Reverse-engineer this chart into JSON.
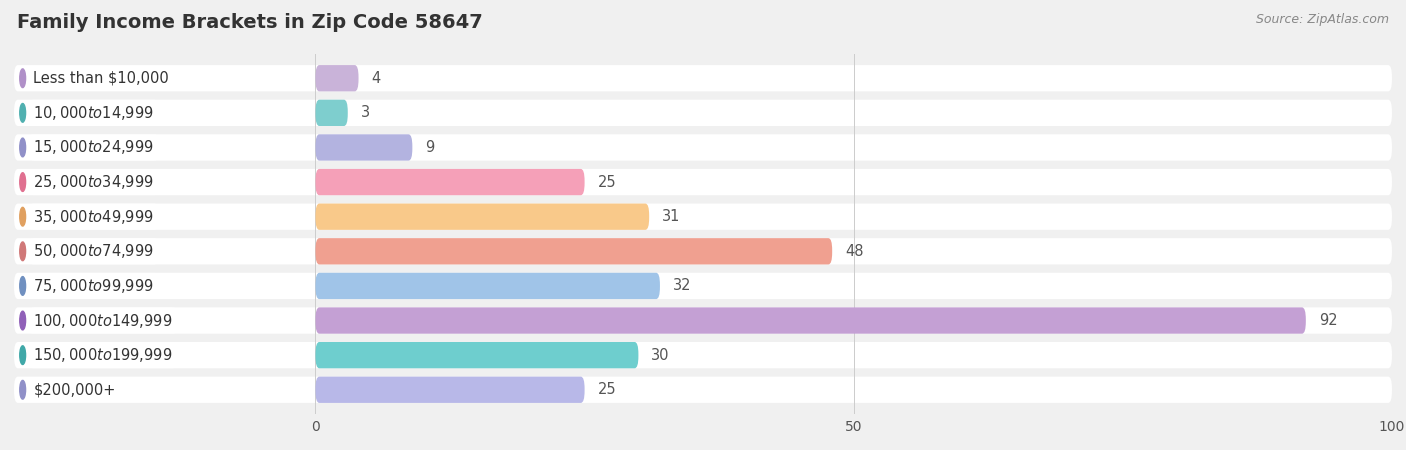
{
  "title": "Family Income Brackets in Zip Code 58647",
  "source": "Source: ZipAtlas.com",
  "categories": [
    "Less than $10,000",
    "$10,000 to $14,999",
    "$15,000 to $24,999",
    "$25,000 to $34,999",
    "$35,000 to $49,999",
    "$50,000 to $74,999",
    "$75,000 to $99,999",
    "$100,000 to $149,999",
    "$150,000 to $199,999",
    "$200,000+"
  ],
  "values": [
    4,
    3,
    9,
    25,
    31,
    48,
    32,
    92,
    30,
    25
  ],
  "bar_colors": [
    "#c9b3d9",
    "#7ecece",
    "#b3b3e0",
    "#f5a0b8",
    "#f9c98a",
    "#f0a090",
    "#a0c4e8",
    "#c4a0d4",
    "#6ecece",
    "#b8b8e8"
  ],
  "dot_colors": [
    "#b090c8",
    "#50b0b0",
    "#9090c8",
    "#e07090",
    "#e0a060",
    "#d07878",
    "#7090c0",
    "#9060b8",
    "#40a8a8",
    "#9090c8"
  ],
  "xlim": [
    -28,
    100
  ],
  "data_xlim": [
    0,
    100
  ],
  "xticks": [
    0,
    50,
    100
  ],
  "background_color": "#f0f0f0",
  "row_bg_color": "#e8e8e8",
  "title_fontsize": 14,
  "source_fontsize": 9,
  "label_fontsize": 10.5,
  "value_fontsize": 10.5
}
